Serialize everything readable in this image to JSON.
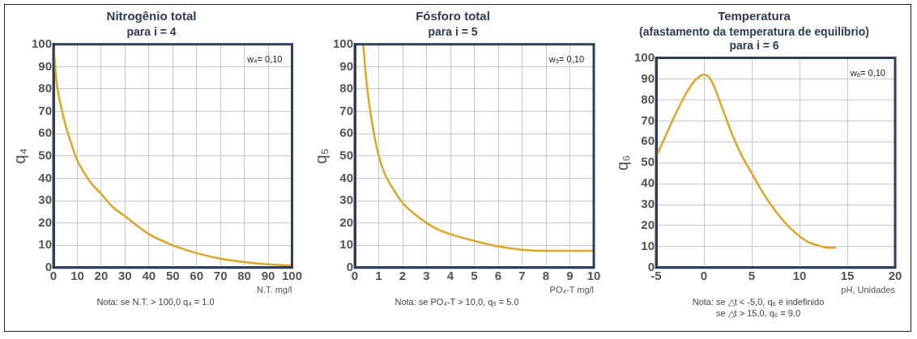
{
  "chart_data": [
    {
      "type": "line",
      "title": "Nitrogênio total",
      "subtitle": "para i = 4",
      "xlabel": "N.T. mg/l",
      "ylabel": "q₄",
      "annotations": [
        "w₄= 0,10",
        "Nota: se N.T. > 100,0  q₄ = 1.0"
      ],
      "series": [
        {
          "color": "#e0a526",
          "x": [
            0,
            1,
            2,
            3,
            5,
            7,
            10,
            15,
            20,
            25,
            30,
            40,
            50,
            60,
            70,
            80,
            90,
            100
          ],
          "values": [
            100,
            86,
            78,
            73,
            64,
            57,
            48,
            39,
            33,
            27,
            23,
            15,
            10,
            6.5,
            4,
            2.5,
            1.5,
            1
          ]
        }
      ],
      "xlim": [
        0,
        100
      ],
      "xticks": [
        0,
        10,
        20,
        30,
        40,
        50,
        60,
        70,
        80,
        90,
        100
      ],
      "ylim": [
        0,
        100
      ],
      "yticks": [
        0,
        10,
        20,
        30,
        40,
        50,
        60,
        70,
        80,
        90,
        100
      ],
      "grid": true,
      "legend": false,
      "marker": "none"
    },
    {
      "type": "line",
      "title": "Fósforo total",
      "subtitle": "para i = 5",
      "xlabel": "PO₄-T mg/l",
      "ylabel": "q₅",
      "annotations": [
        "w₅= 0,10",
        "Nota: se PO₄-T > 10,0, q₅ = 5.0"
      ],
      "series": [
        {
          "color": "#e0a526",
          "x": [
            0.35,
            0.5,
            0.75,
            1,
            1.25,
            1.5,
            2,
            2.5,
            3,
            3.5,
            4,
            5,
            6,
            7,
            8,
            9,
            10
          ],
          "values": [
            100,
            82,
            63,
            50,
            42,
            37,
            29,
            24,
            20,
            17,
            15,
            12,
            9.5,
            8,
            7.5,
            7.5,
            7.5
          ]
        }
      ],
      "xlim": [
        0,
        10
      ],
      "xticks": [
        0,
        1,
        2,
        3,
        4,
        5,
        6,
        7,
        8,
        9,
        10
      ],
      "ylim": [
        0,
        100
      ],
      "yticks": [
        0,
        10,
        20,
        30,
        40,
        50,
        60,
        70,
        80,
        90,
        100
      ],
      "grid": true,
      "legend": false,
      "marker": "none"
    },
    {
      "type": "line",
      "title": "Temperatura",
      "subtitle": "(afastamento da temperatura de equilíbrio)\npara i = 6",
      "xlabel": "pH, Unidades",
      "ylabel": "q₆",
      "annotations": [
        "w₆= 0,10",
        "Nota: se △t < -5,0, q₆ é indefinido\nse △t > 15,0, q₆ = 9.0"
      ],
      "series": [
        {
          "color": "#e0a526",
          "x": [
            -5,
            -4,
            -3,
            -2,
            -1,
            -0.5,
            0,
            0.5,
            1,
            2,
            3,
            4,
            5,
            6,
            7,
            8,
            9,
            10,
            11,
            12,
            13,
            13.8
          ],
          "values": [
            53,
            63,
            73,
            82,
            89,
            91,
            92,
            91,
            87,
            75,
            63,
            53,
            45,
            37,
            30,
            24,
            19,
            15,
            12,
            10.5,
            9.5,
            9.5
          ]
        }
      ],
      "xlim": [
        -5,
        20
      ],
      "xticks": [
        -5,
        0,
        5,
        10,
        15,
        20
      ],
      "ylim": [
        0,
        100
      ],
      "yticks": [
        0,
        10,
        20,
        30,
        40,
        50,
        60,
        70,
        80,
        90,
        100
      ],
      "grid": true,
      "legend": false,
      "marker": "none"
    }
  ]
}
